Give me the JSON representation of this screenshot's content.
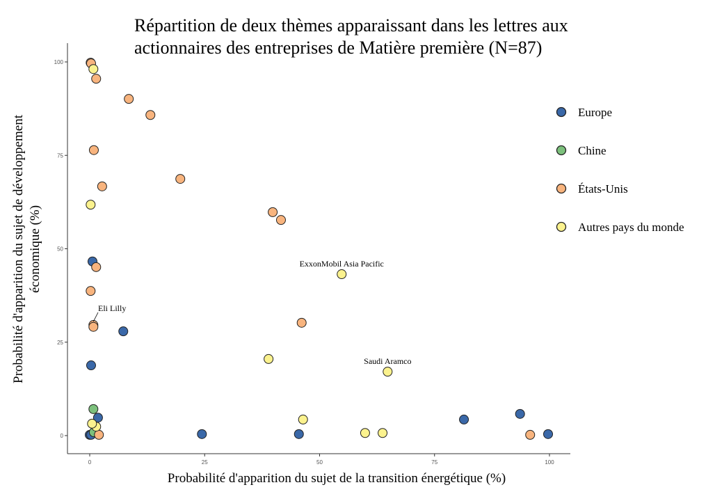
{
  "chart_data": {
    "type": "scatter",
    "title_lines": [
      "Répartition de deux thèmes apparaissant dans les lettres aux",
      "actionnaires des entreprises de Matière première (N=87)"
    ],
    "xlabel": "Probabilité d'apparition du sujet de la transition énergétique (%)",
    "ylabel_lines": [
      "Probabilité d'apparition du sujet de développement",
      "économique (%)"
    ],
    "xlim": [
      -5,
      105
    ],
    "ylim": [
      -5,
      102
    ],
    "xticks": [
      0,
      25,
      50,
      75,
      100
    ],
    "yticks": [
      0,
      25,
      50,
      75,
      100
    ],
    "grid": false,
    "legend_placement": "right",
    "series": [
      {
        "name": "Europe",
        "color": "#3a68a8",
        "points": [
          [
            0.6,
            46.6
          ],
          [
            7.3,
            27.9
          ],
          [
            0.3,
            18.8
          ],
          [
            1.8,
            4.8
          ],
          [
            0,
            0.2
          ],
          [
            0.3,
            0.2
          ],
          [
            24.4,
            0.4
          ],
          [
            45.5,
            0.4
          ],
          [
            81.4,
            4.3
          ],
          [
            93.6,
            5.8
          ],
          [
            99.7,
            0.4
          ]
        ]
      },
      {
        "name": "Chine",
        "color": "#7cc07c",
        "points": [
          [
            0.8,
            7.1
          ],
          [
            0.9,
            0.9
          ]
        ]
      },
      {
        "name": "États-Unis",
        "color": "#f8b47e",
        "points": [
          [
            0.2,
            99.8
          ],
          [
            0.3,
            99.6
          ],
          [
            1.4,
            95.5
          ],
          [
            8.5,
            90.1
          ],
          [
            13.2,
            85.8
          ],
          [
            0.9,
            76.4
          ],
          [
            2.7,
            66.7
          ],
          [
            19.7,
            68.7
          ],
          [
            39.8,
            59.8
          ],
          [
            41.6,
            57.7
          ],
          [
            1.4,
            45.1
          ],
          [
            0.2,
            38.7
          ],
          [
            0.8,
            29.6
          ],
          [
            0.8,
            29.1
          ],
          [
            46.1,
            30.2
          ],
          [
            2.0,
            0.2
          ],
          [
            95.8,
            0.2
          ]
        ]
      },
      {
        "name": "Autres pays du monde",
        "color": "#fbf28e",
        "points": [
          [
            0.8,
            98.1
          ],
          [
            0.2,
            61.8
          ],
          [
            54.8,
            43.2
          ],
          [
            38.9,
            20.5
          ],
          [
            64.8,
            17.1
          ],
          [
            46.4,
            4.3
          ],
          [
            59.9,
            0.7
          ],
          [
            63.7,
            0.7
          ],
          [
            1.4,
            2.4
          ],
          [
            0.5,
            3.2
          ]
        ]
      }
    ],
    "annotations": [
      {
        "text": "ExxonMobil  Asia Pacific",
        "x": 54.8,
        "y": 43.2
      },
      {
        "text": "Saudi Aramco",
        "x": 64.8,
        "y": 17.1
      },
      {
        "text": "Eli  Lilly",
        "x": 0.8,
        "y": 29.6
      }
    ]
  }
}
